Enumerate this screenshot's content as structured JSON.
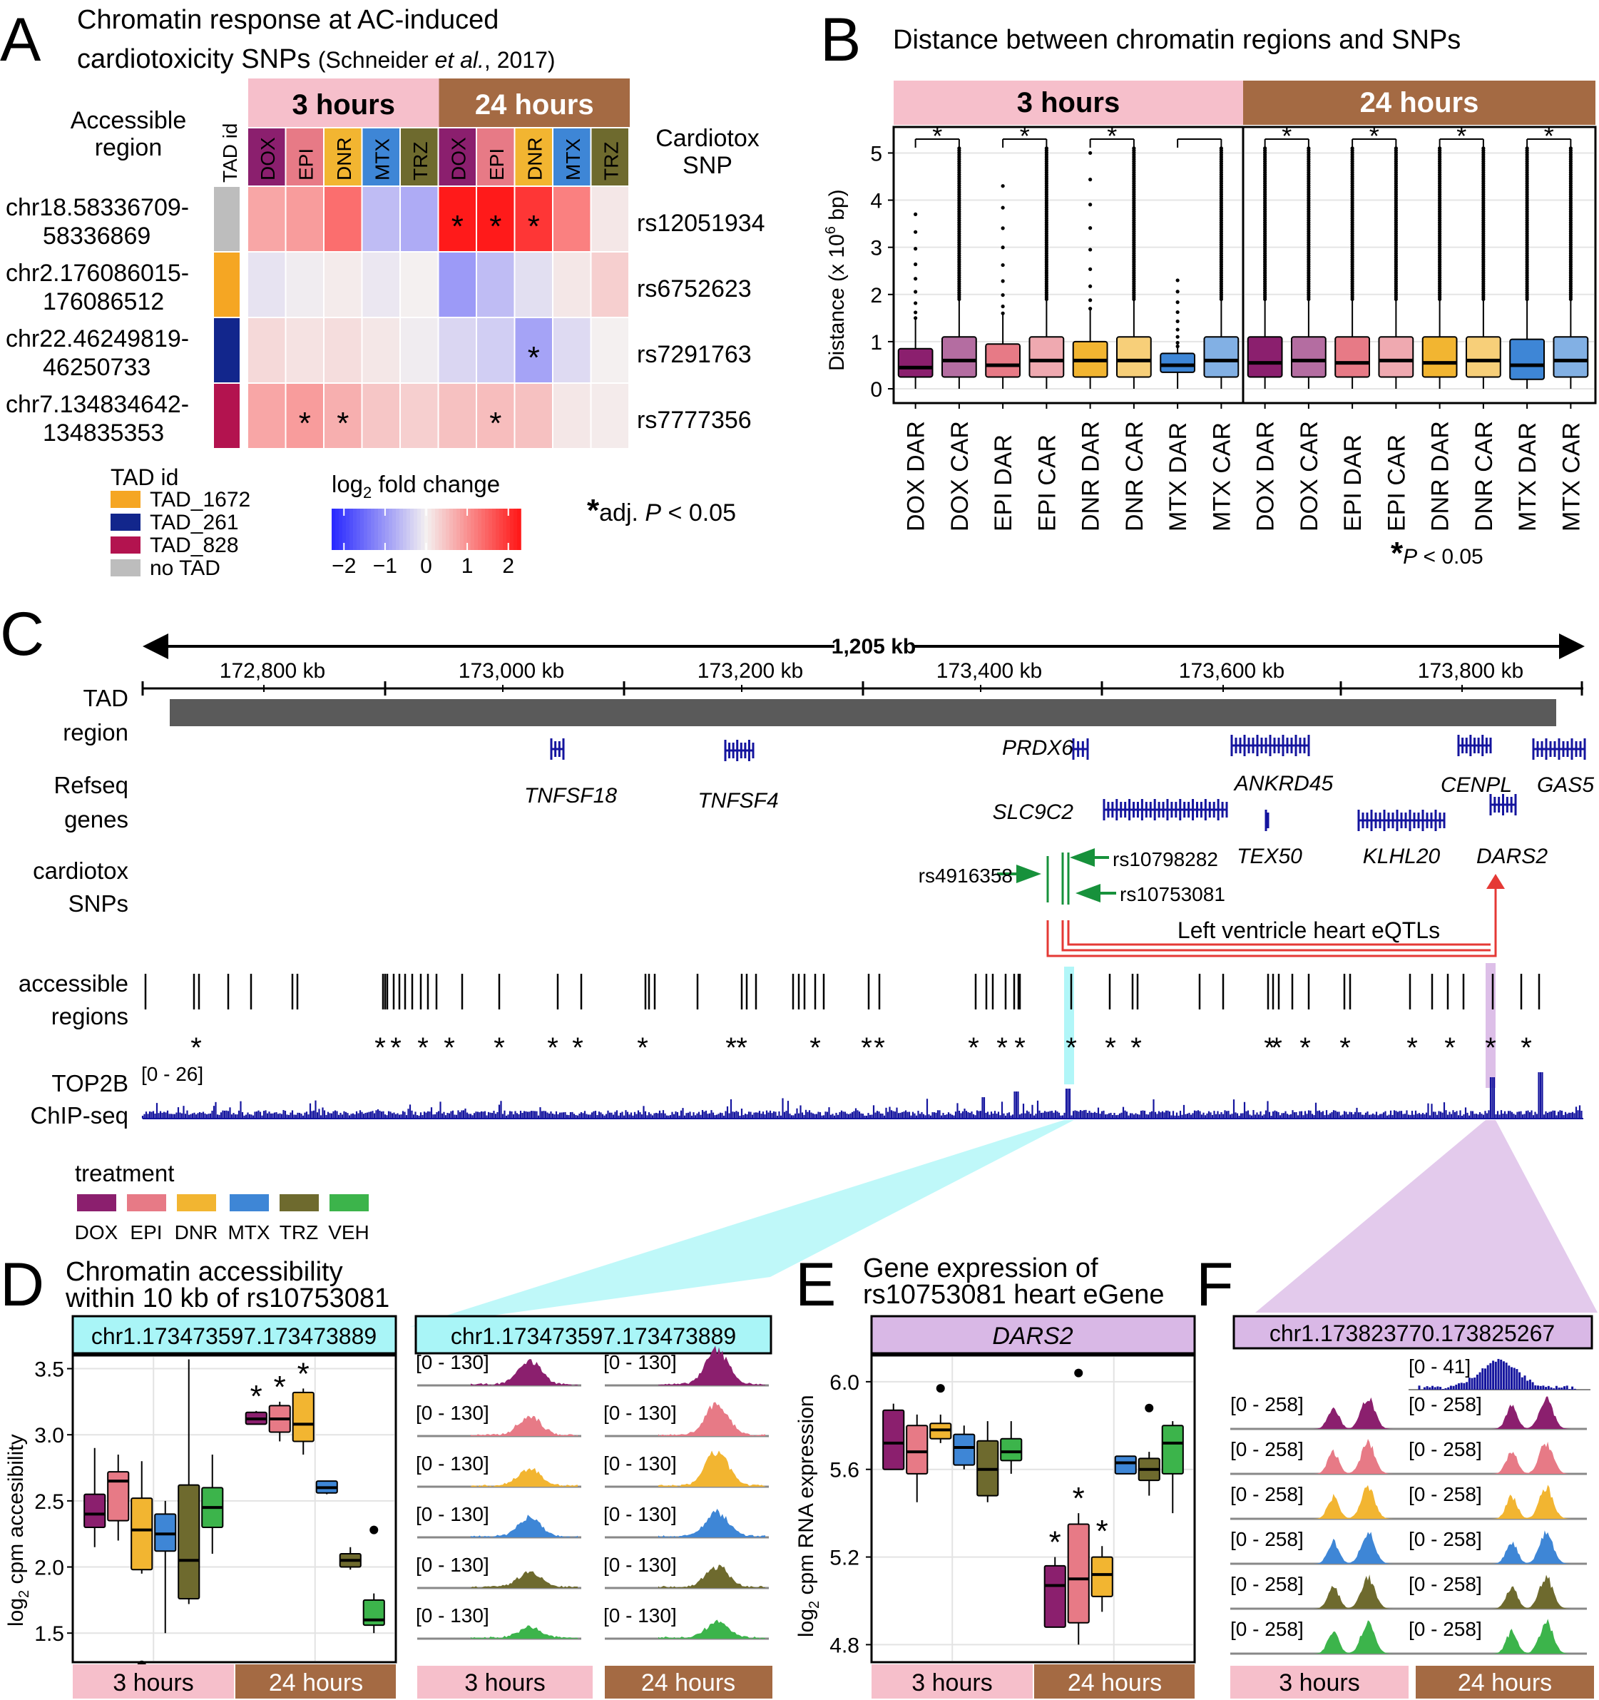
{
  "colors": {
    "DOX": "#8B1F6E",
    "EPI": "#E77A86",
    "DNR": "#F2B531",
    "MTX": "#3E86D6",
    "TRZ": "#6E6A2E",
    "VEH": "#3CB44B",
    "h3": "#F6BFCB",
    "h24": "#A46A43",
    "cyan": "#A9F5F7",
    "lavender": "#D9B8E6",
    "navy": "#14149E",
    "tad1672": "#F5A623",
    "tad261": "#12268C",
    "tad828": "#B3134F",
    "notad": "#BDBDBD",
    "green": "#17913B",
    "red": "#E53935"
  },
  "panel_letters": [
    "A",
    "B",
    "C",
    "D",
    "E",
    "F"
  ],
  "panelA": {
    "title_line1": "Chromatin response at AC-induced",
    "title_line2": "cardiotoxicity SNPs",
    "citation_pre": "(Schneider ",
    "citation_italic": "et al.",
    "citation_post": ", 2017)",
    "row_header": "Accessible region",
    "row_header_l1": "Accessible",
    "row_header_l2": "region",
    "tad_col_header": "TAD id",
    "snp_col_header_l1": "Cardiotox",
    "snp_col_header_l2": "SNP",
    "time_3h": "3 hours",
    "time_24h": "24 hours",
    "drugs": [
      "DOX",
      "EPI",
      "DNR",
      "MTX",
      "TRZ"
    ],
    "rows": [
      {
        "region_l1": "chr18.58336709-",
        "region_l2": "58336869",
        "tad": "notad",
        "snp": "rs12051934",
        "values": [
          0.8,
          0.9,
          1.4,
          -0.6,
          -0.8,
          2.3,
          2.3,
          2.0,
          1.2,
          0.1
        ],
        "sig": [
          false,
          false,
          false,
          false,
          false,
          true,
          true,
          true,
          false,
          false
        ]
      },
      {
        "region_l1": "chr2.176086015-",
        "region_l2": "176086512",
        "tad": "tad1672",
        "snp": "rs6752623",
        "values": [
          -0.15,
          -0.05,
          0.05,
          -0.1,
          0.0,
          -1.0,
          -0.6,
          -0.2,
          0.1,
          0.35
        ],
        "sig": [
          false,
          false,
          false,
          false,
          false,
          false,
          false,
          false,
          false,
          false
        ]
      },
      {
        "region_l1": "chr22.46249819-",
        "region_l2": "46250733",
        "tad": "tad261",
        "snp": "rs7291763",
        "values": [
          0.25,
          0.15,
          0.2,
          0.1,
          -0.05,
          -0.3,
          -0.4,
          -0.9,
          -0.25,
          0.0
        ],
        "sig": [
          false,
          false,
          false,
          false,
          false,
          false,
          false,
          true,
          false,
          false
        ]
      },
      {
        "region_l1": "chr7.134834642-",
        "region_l2": "134835353",
        "tad": "tad828",
        "snp": "rs7777356",
        "values": [
          0.8,
          0.9,
          0.7,
          0.45,
          0.35,
          0.5,
          0.55,
          0.5,
          0.1,
          0.05
        ],
        "sig": [
          false,
          true,
          true,
          false,
          false,
          false,
          true,
          false,
          false,
          false
        ]
      }
    ],
    "tad_legend_title": "TAD id",
    "tad_legend": [
      {
        "key": "tad1672",
        "label": "TAD_1672"
      },
      {
        "key": "tad261",
        "label": "TAD_261"
      },
      {
        "key": "tad828",
        "label": "TAD_828"
      },
      {
        "key": "notad",
        "label": "no TAD"
      }
    ],
    "colorbar_title_pre": "log",
    "colorbar_title_sub": "2",
    "colorbar_title_post": " fold change",
    "colorbar_ticks": [
      "−2",
      "−1",
      "0",
      "1",
      "2"
    ],
    "colorbar_range": [
      -2.3,
      2.3
    ],
    "sig_note": "adj. P < 0.05",
    "sig_note_pre": "adj. ",
    "sig_note_italic": "P",
    "sig_note_post": " < 0.05",
    "star": "*"
  },
  "panelB": {
    "title": "Distance between chromatin regions and SNPs",
    "ylabel_pre": "Distance (x 10",
    "ylabel_sup": "6",
    "ylabel_post": " bp)",
    "yticks": [
      "0",
      "1",
      "2",
      "3",
      "4",
      "5"
    ],
    "ylim": [
      0,
      5.4
    ],
    "time_3h": "3 hours",
    "time_24h": "24 hours",
    "categories": [
      "DOX DAR",
      "DOX CAR",
      "EPI DAR",
      "EPI CAR",
      "DNR DAR",
      "DNR CAR",
      "MTX DAR",
      "MTX CAR"
    ],
    "boxes_3h": [
      {
        "q1": 0.25,
        "med": 0.45,
        "q3": 0.85,
        "lo": 0.0,
        "hi": 1.5,
        "outMax": 3.7,
        "dense": false
      },
      {
        "q1": 0.25,
        "med": 0.6,
        "q3": 1.1,
        "lo": 0.0,
        "hi": 1.9,
        "outMax": 5.1,
        "dense": true
      },
      {
        "q1": 0.25,
        "med": 0.5,
        "q3": 0.95,
        "lo": 0.0,
        "hi": 1.6,
        "outMax": 4.3,
        "dense": false
      },
      {
        "q1": 0.25,
        "med": 0.6,
        "q3": 1.1,
        "lo": 0.0,
        "hi": 1.9,
        "outMax": 5.1,
        "dense": true
      },
      {
        "q1": 0.25,
        "med": 0.6,
        "q3": 1.0,
        "lo": 0.0,
        "hi": 1.7,
        "outMax": 5.0,
        "dense": false
      },
      {
        "q1": 0.25,
        "med": 0.6,
        "q3": 1.1,
        "lo": 0.0,
        "hi": 1.9,
        "outMax": 5.1,
        "dense": true
      },
      {
        "q1": 0.35,
        "med": 0.5,
        "q3": 0.75,
        "lo": 0.0,
        "hi": 0.9,
        "outMax": 2.3,
        "dense": false
      },
      {
        "q1": 0.25,
        "med": 0.6,
        "q3": 1.1,
        "lo": 0.0,
        "hi": 1.9,
        "outMax": 5.1,
        "dense": true
      }
    ],
    "boxes_24h": [
      {
        "q1": 0.25,
        "med": 0.55,
        "q3": 1.1,
        "lo": 0.0,
        "hi": 1.9,
        "outMax": 5.1,
        "dense": true
      },
      {
        "q1": 0.25,
        "med": 0.6,
        "q3": 1.1,
        "lo": 0.0,
        "hi": 1.9,
        "outMax": 5.1,
        "dense": true
      },
      {
        "q1": 0.25,
        "med": 0.55,
        "q3": 1.1,
        "lo": 0.0,
        "hi": 1.9,
        "outMax": 5.1,
        "dense": true
      },
      {
        "q1": 0.25,
        "med": 0.6,
        "q3": 1.1,
        "lo": 0.0,
        "hi": 1.9,
        "outMax": 5.1,
        "dense": true
      },
      {
        "q1": 0.25,
        "med": 0.55,
        "q3": 1.1,
        "lo": 0.0,
        "hi": 1.9,
        "outMax": 5.1,
        "dense": true
      },
      {
        "q1": 0.25,
        "med": 0.6,
        "q3": 1.1,
        "lo": 0.0,
        "hi": 1.9,
        "outMax": 5.1,
        "dense": true
      },
      {
        "q1": 0.2,
        "med": 0.5,
        "q3": 1.05,
        "lo": 0.0,
        "hi": 1.9,
        "outMax": 5.1,
        "dense": true
      },
      {
        "q1": 0.25,
        "med": 0.6,
        "q3": 1.1,
        "lo": 0.0,
        "hi": 1.9,
        "outMax": 5.1,
        "dense": true
      }
    ],
    "sig_3h": [
      true,
      true,
      true,
      false
    ],
    "sig_24h": [
      true,
      true,
      true,
      true
    ],
    "p_note_italic": "P",
    "p_note_post": " < 0.05",
    "star": "*"
  },
  "panelC": {
    "span_label": "1,205 kb",
    "axis_ticks": [
      "172,800 kb",
      "173,000 kb",
      "173,200 kb",
      "173,400 kb",
      "173,600 kb",
      "173,800 kb"
    ],
    "track_tad_l1": "TAD",
    "track_tad_l2": "region",
    "track_genes_l1": "Refseq",
    "track_genes_l2": "genes",
    "track_snps_l1": "cardiotox",
    "track_snps_l2": "SNPs",
    "track_access_l1": "accessible",
    "track_access_l2": "regions",
    "track_chip_l1": "TOP2B",
    "track_chip_l2": "ChIP-seq",
    "chip_range": "[0 - 26]",
    "genes": [
      "TNFSF18",
      "TNFSF4",
      "PRDX6",
      "SLC9C2",
      "ANKRD45",
      "TEX50",
      "KLHL20",
      "CENPL",
      "GAS5",
      "DARS2"
    ],
    "snps": [
      "rs4916358",
      "rs10798282",
      "rs10753081"
    ],
    "eqtl_label": "Left ventricle heart eQTLs"
  },
  "legend": {
    "title": "treatment",
    "items": [
      "DOX",
      "EPI",
      "DNR",
      "MTX",
      "TRZ",
      "VEH"
    ]
  },
  "panelD": {
    "title_l1": "Chromatin accessibility",
    "title_l2": "within 10 kb of rs10753081",
    "region": "chr1.173473597.173473889",
    "ylabel_pre": "log",
    "ylabel_sub": "2",
    "ylabel_post": " cpm accesibility",
    "yticks": [
      "1.5",
      "2.0",
      "2.5",
      "3.0",
      "3.5"
    ],
    "ylim": [
      1.28,
      3.6
    ],
    "time_3h": "3 hours",
    "time_24h": "24 hours",
    "boxes": [
      {
        "t": "3h",
        "drug": "DOX",
        "q1": 2.3,
        "med": 2.4,
        "q3": 2.55,
        "lo": 2.15,
        "hi": 2.9,
        "out": [],
        "sig": false
      },
      {
        "t": "3h",
        "drug": "EPI",
        "q1": 2.35,
        "med": 2.65,
        "q3": 2.72,
        "lo": 2.2,
        "hi": 2.85,
        "out": [],
        "sig": false
      },
      {
        "t": "3h",
        "drug": "DNR",
        "q1": 1.98,
        "med": 2.28,
        "q3": 2.52,
        "lo": 1.95,
        "hi": 2.8,
        "out": [
          1.26
        ],
        "sig": false
      },
      {
        "t": "3h",
        "drug": "MTX",
        "q1": 2.12,
        "med": 2.25,
        "q3": 2.4,
        "lo": 1.5,
        "hi": 2.5,
        "out": [],
        "sig": false
      },
      {
        "t": "3h",
        "drug": "TRZ",
        "q1": 1.76,
        "med": 2.05,
        "q3": 2.62,
        "lo": 1.72,
        "hi": 3.57,
        "out": [],
        "sig": false
      },
      {
        "t": "3h",
        "drug": "VEH",
        "q1": 2.3,
        "med": 2.45,
        "q3": 2.6,
        "lo": 2.1,
        "hi": 2.85,
        "out": [],
        "sig": false
      },
      {
        "t": "24h",
        "drug": "DOX",
        "q1": 3.08,
        "med": 3.12,
        "q3": 3.17,
        "lo": 3.08,
        "hi": 3.18,
        "out": [],
        "sig": true
      },
      {
        "t": "24h",
        "drug": "EPI",
        "q1": 3.02,
        "med": 3.12,
        "q3": 3.22,
        "lo": 2.95,
        "hi": 3.25,
        "out": [],
        "sig": true
      },
      {
        "t": "24h",
        "drug": "DNR",
        "q1": 2.95,
        "med": 3.08,
        "q3": 3.32,
        "lo": 2.85,
        "hi": 3.35,
        "out": [],
        "sig": true
      },
      {
        "t": "24h",
        "drug": "MTX",
        "q1": 2.56,
        "med": 2.6,
        "q3": 2.65,
        "lo": 2.55,
        "hi": 2.65,
        "out": [],
        "sig": false
      },
      {
        "t": "24h",
        "drug": "TRZ",
        "q1": 2.0,
        "med": 2.05,
        "q3": 2.1,
        "lo": 1.98,
        "hi": 2.15,
        "out": [],
        "sig": false
      },
      {
        "t": "24h",
        "drug": "VEH",
        "q1": 1.56,
        "med": 1.6,
        "q3": 1.75,
        "lo": 1.5,
        "hi": 1.8,
        "out": [
          2.28
        ],
        "sig": false
      }
    ],
    "track_region": "chr1.173473597.173473889",
    "track_range": "[0 - 130]"
  },
  "panelE": {
    "title_l1": "Gene expression of",
    "title_l2": "rs10753081 heart eGene",
    "gene": "DARS2",
    "ylabel_pre": "log",
    "ylabel_sub": "2",
    "ylabel_post": " cpm RNA expression",
    "yticks": [
      "4.8",
      "5.2",
      "5.6",
      "6.0"
    ],
    "ylim": [
      4.72,
      6.12
    ],
    "time_3h": "3 hours",
    "time_24h": "24 hours",
    "boxes": [
      {
        "t": "3h",
        "drug": "DOX",
        "q1": 5.6,
        "med": 5.72,
        "q3": 5.87,
        "lo": 5.6,
        "hi": 5.9,
        "out": [],
        "sig": false
      },
      {
        "t": "3h",
        "drug": "EPI",
        "q1": 5.58,
        "med": 5.68,
        "q3": 5.8,
        "lo": 5.45,
        "hi": 5.85,
        "out": [],
        "sig": false
      },
      {
        "t": "3h",
        "drug": "DNR",
        "q1": 5.74,
        "med": 5.78,
        "q3": 5.81,
        "lo": 5.72,
        "hi": 5.85,
        "out": [
          5.97
        ],
        "sig": false
      },
      {
        "t": "3h",
        "drug": "MTX",
        "q1": 5.62,
        "med": 5.7,
        "q3": 5.76,
        "lo": 5.6,
        "hi": 5.8,
        "out": [],
        "sig": false
      },
      {
        "t": "3h",
        "drug": "TRZ",
        "q1": 5.48,
        "med": 5.6,
        "q3": 5.73,
        "lo": 5.45,
        "hi": 5.82,
        "out": [],
        "sig": false
      },
      {
        "t": "3h",
        "drug": "VEH",
        "q1": 5.64,
        "med": 5.68,
        "q3": 5.74,
        "lo": 5.58,
        "hi": 5.82,
        "out": [],
        "sig": false
      },
      {
        "t": "24h",
        "drug": "DOX",
        "q1": 4.88,
        "med": 5.07,
        "q3": 5.16,
        "lo": 4.88,
        "hi": 5.2,
        "out": [],
        "sig": true
      },
      {
        "t": "24h",
        "drug": "EPI",
        "q1": 4.9,
        "med": 5.1,
        "q3": 5.35,
        "lo": 4.8,
        "hi": 5.4,
        "out": [
          6.04
        ],
        "sig": true
      },
      {
        "t": "24h",
        "drug": "DNR",
        "q1": 5.02,
        "med": 5.12,
        "q3": 5.2,
        "lo": 4.95,
        "hi": 5.25,
        "out": [],
        "sig": true
      },
      {
        "t": "24h",
        "drug": "MTX",
        "q1": 5.58,
        "med": 5.63,
        "q3": 5.66,
        "lo": 5.58,
        "hi": 5.66,
        "out": [],
        "sig": false
      },
      {
        "t": "24h",
        "drug": "TRZ",
        "q1": 5.55,
        "med": 5.6,
        "q3": 5.65,
        "lo": 5.48,
        "hi": 5.68,
        "out": [
          5.88
        ],
        "sig": false
      },
      {
        "t": "24h",
        "drug": "VEH",
        "q1": 5.58,
        "med": 5.72,
        "q3": 5.8,
        "lo": 5.4,
        "hi": 5.82,
        "out": [],
        "sig": false
      }
    ]
  },
  "panelF": {
    "region": "chr1.173823770.173825267",
    "chip_range": "[0 - 41]",
    "track_range": "[0 - 258]",
    "time_3h": "3 hours",
    "time_24h": "24 hours"
  }
}
